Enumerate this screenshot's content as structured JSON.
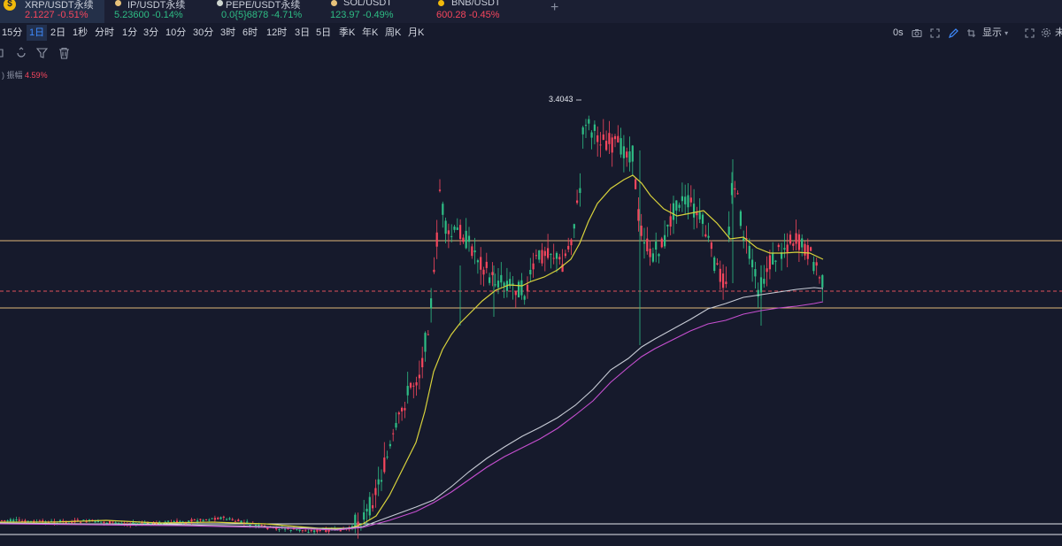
{
  "tickers": [
    {
      "symbol": "XRP/USDT永续",
      "price": "2.1227",
      "change": "-0.51%",
      "dir": "down",
      "active": true,
      "icon": "xrp-coin-icon"
    },
    {
      "symbol": "IP/USDT永续",
      "price": "5.23600",
      "change": "-0.14%",
      "dir": "down",
      "dot_color": "#e8c27a"
    },
    {
      "symbol": "PEPE/USDT永续",
      "price": "0.0{5}6878",
      "change": "-4.71%",
      "dir": "down",
      "dot_color": "#cfd6d0"
    },
    {
      "symbol": "SOL/USDT",
      "price": "123.97",
      "change": "-0.49%",
      "dir": "down",
      "dot_color": "#e8c27a"
    },
    {
      "symbol": "BNB/USDT",
      "price": "600.28",
      "change": "-0.45%",
      "dir": "down",
      "dot_color": "#f0b90b"
    }
  ],
  "add_tab": "+",
  "intervals": [
    "15分",
    "1日",
    "2日",
    "1秒",
    "分时",
    "1分",
    "3分",
    "10分",
    "30分",
    "3时",
    "6时",
    "12时",
    "3日",
    "5日",
    "季K",
    "年K",
    "周K",
    "月K"
  ],
  "selected_interval": "1日",
  "toolbar_right": {
    "seconds": "0s",
    "display_label": "显示",
    "trail": "未"
  },
  "amplitude": {
    "label": "振幅",
    "value": "4.59%"
  },
  "high_marker": "3.4043",
  "colors": {
    "up": "#2ebd85",
    "down": "#f6465d",
    "ma_yellow": "#d8d23c",
    "ma_white": "#c8ccd6",
    "ma_magenta": "#c64fd0",
    "level_line": "#e0b878"
  }
}
